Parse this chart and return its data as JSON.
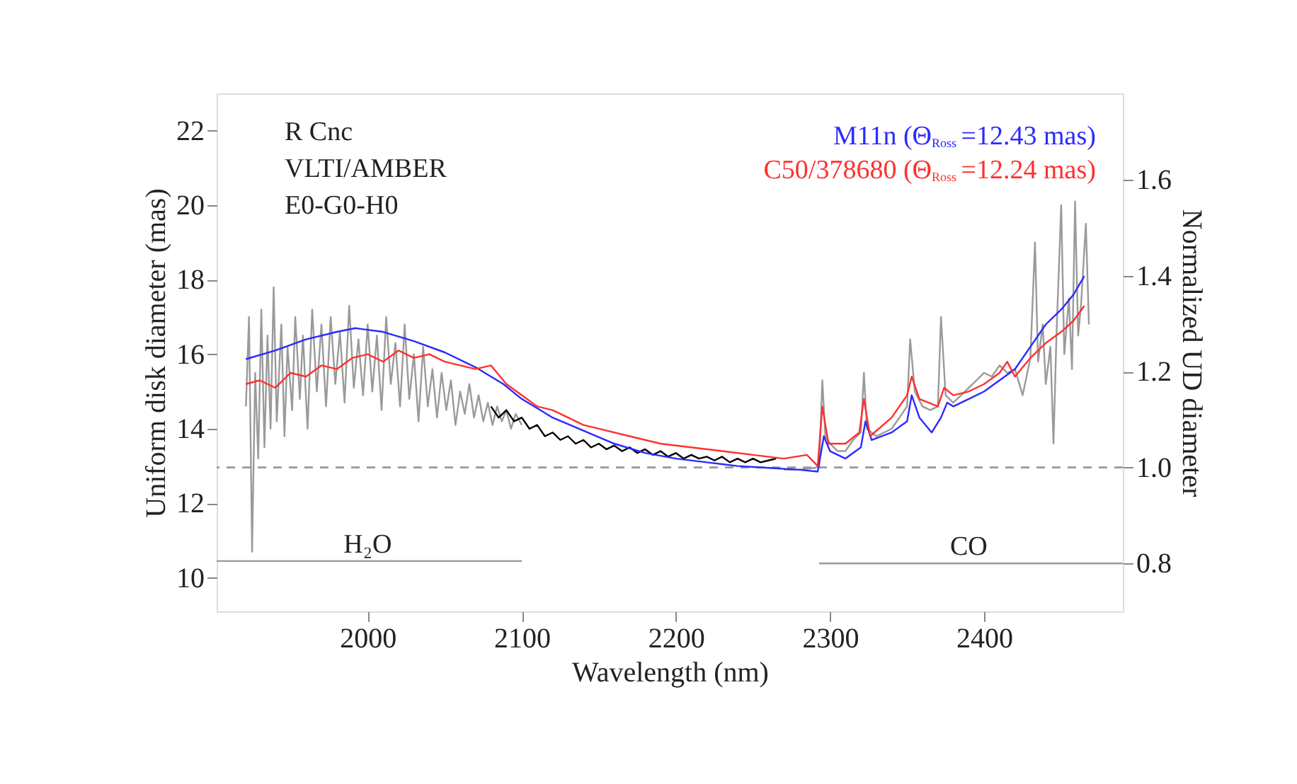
{
  "chart_data": {
    "type": "line",
    "xlabel": "Wavelength (nm)",
    "ylabel": "Uniform disk diameter (mas)",
    "y2label": "Normalized UD diameter",
    "xlim": [
      1902,
      2490
    ],
    "xticks": [
      2000,
      2100,
      2200,
      2300,
      2400
    ],
    "ylim": [
      9.1,
      23.0
    ],
    "yticks": [
      10,
      12,
      14,
      16,
      18,
      20,
      22
    ],
    "y2lim": [
      0.7,
      1.78
    ],
    "y2ticks": [
      {
        "value": 0.8,
        "label": "0.8"
      },
      {
        "value": 1.0,
        "label": "1.0"
      },
      {
        "value": 1.2,
        "label": "1.2"
      },
      {
        "value": 1.4,
        "label": "1.4"
      },
      {
        "value": 1.6,
        "label": "1.6"
      }
    ],
    "grid": false,
    "legend": "top right",
    "marker": "none",
    "line_style": "solid",
    "series": [
      {
        "color": "#9a9a9a",
        "x": [
          1921,
          1923,
          1925,
          1927,
          1929,
          1931,
          1933,
          1935,
          1937,
          1939,
          1941,
          1944,
          1946,
          1948,
          1951,
          1953,
          1956,
          1958,
          1961,
          1964,
          1967,
          1970,
          1973,
          1976,
          1979,
          1982,
          1985,
          1988,
          1991,
          1994,
          1997,
          2000,
          2003,
          2006,
          2009,
          2012,
          2015,
          2018,
          2021,
          2024,
          2027,
          2030,
          2033,
          2036,
          2039,
          2042,
          2045,
          2048,
          2051,
          2054,
          2057,
          2060,
          2063,
          2066,
          2069,
          2072,
          2075,
          2078,
          2081,
          2084,
          2087,
          2090,
          2093,
          2096,
          2100,
          2180,
          2270,
          2280,
          2290,
          2293,
          2295,
          2297,
          2300,
          2305,
          2310,
          2315,
          2320,
          2322,
          2324,
          2330,
          2340,
          2350,
          2352,
          2355,
          2360,
          2365,
          2370,
          2372,
          2375,
          2380,
          2385,
          2390,
          2395,
          2400,
          2405,
          2410,
          2415,
          2420,
          2425,
          2430,
          2433,
          2435,
          2438,
          2440,
          2443,
          2445,
          2447,
          2450,
          2452,
          2455,
          2457,
          2459,
          2461,
          2463,
          2466,
          2468
        ],
        "values": [
          14.6,
          17.0,
          10.7,
          15.5,
          13.2,
          17.2,
          13.5,
          16.5,
          14.0,
          17.8,
          14.2,
          16.8,
          13.8,
          16.2,
          14.5,
          17.0,
          14.8,
          16.5,
          14.0,
          17.2,
          15.0,
          16.8,
          14.6,
          17.0,
          15.2,
          16.6,
          14.7,
          17.3,
          15.1,
          16.4,
          14.9,
          16.8,
          15.0,
          16.5,
          14.5,
          17.0,
          15.2,
          16.3,
          14.6,
          16.8,
          14.8,
          16.0,
          14.2,
          16.2,
          14.6,
          15.6,
          14.3,
          15.5,
          14.5,
          15.3,
          14.1,
          15.0,
          14.4,
          15.2,
          14.3,
          14.9,
          14.2,
          14.7,
          14.1,
          14.6,
          14.2,
          14.5,
          14.0,
          14.4,
          14.1,
          null,
          12.9,
          12.9,
          12.95,
          13.0,
          15.3,
          13.8,
          13.6,
          13.4,
          13.4,
          13.7,
          13.9,
          15.5,
          14.0,
          13.8,
          14.0,
          14.6,
          16.4,
          15.0,
          14.6,
          14.5,
          14.6,
          17.0,
          14.9,
          14.7,
          14.9,
          15.1,
          15.3,
          15.5,
          15.4,
          15.7,
          15.5,
          15.6,
          14.9,
          15.9,
          19.0,
          15.8,
          16.8,
          15.2,
          16.2,
          13.6,
          16.6,
          20.0,
          16.0,
          17.5,
          15.6,
          20.1,
          16.5,
          17.4,
          19.5,
          16.8
        ]
      },
      {
        "color": "#000000",
        "x": [
          2080,
          2085,
          2090,
          2095,
          2100,
          2105,
          2110,
          2115,
          2120,
          2125,
          2130,
          2135,
          2140,
          2145,
          2150,
          2155,
          2160,
          2165,
          2170,
          2175,
          2180,
          2185,
          2190,
          2195,
          2200,
          2205,
          2210,
          2215,
          2220,
          2225,
          2230,
          2235,
          2240,
          2245,
          2250,
          2255,
          2260,
          2265
        ],
        "values": [
          14.6,
          14.3,
          14.5,
          14.2,
          14.3,
          14.0,
          14.1,
          13.8,
          13.9,
          13.7,
          13.8,
          13.6,
          13.7,
          13.5,
          13.6,
          13.45,
          13.55,
          13.4,
          13.5,
          13.35,
          13.45,
          13.3,
          13.4,
          13.25,
          13.35,
          13.2,
          13.3,
          13.2,
          13.25,
          13.15,
          13.25,
          13.1,
          13.2,
          13.1,
          13.2,
          13.1,
          13.15,
          13.2
        ]
      },
      {
        "name": "M11n (Θ$_{Ross}$=12.43 mas)",
        "color": "#2a2aff",
        "x": [
          1921,
          1940,
          1960,
          1980,
          1992,
          2010,
          2030,
          2050,
          2070,
          2088,
          2100,
          2120,
          2140,
          2160,
          2180,
          2200,
          2220,
          2240,
          2260,
          2280,
          2292,
          2296,
          2300,
          2310,
          2320,
          2323,
          2327,
          2340,
          2350,
          2353,
          2358,
          2366,
          2372,
          2376,
          2380,
          2390,
          2400,
          2410,
          2420,
          2430,
          2440,
          2450,
          2458,
          2465
        ],
        "values": [
          15.87,
          16.1,
          16.4,
          16.6,
          16.7,
          16.6,
          16.35,
          16.05,
          15.65,
          15.2,
          14.8,
          14.3,
          13.95,
          13.6,
          13.35,
          13.2,
          13.1,
          13.0,
          12.95,
          12.9,
          12.85,
          13.8,
          13.4,
          13.2,
          13.5,
          14.2,
          13.7,
          13.9,
          14.2,
          14.9,
          14.3,
          13.9,
          14.3,
          14.7,
          14.6,
          14.8,
          15.0,
          15.3,
          15.6,
          16.2,
          16.8,
          17.2,
          17.6,
          18.1
        ]
      },
      {
        "name": "C50/378680 (Θ$_{Ross}$=12.24 mas)",
        "color": "#ff3030",
        "x": [
          1921,
          1930,
          1940,
          1950,
          1960,
          1970,
          1980,
          1990,
          2000,
          2010,
          2020,
          2030,
          2040,
          2050,
          2060,
          2070,
          2080,
          2090,
          2100,
          2110,
          2120,
          2130,
          2140,
          2150,
          2170,
          2190,
          2210,
          2230,
          2250,
          2270,
          2285,
          2292,
          2295,
          2299,
          2310,
          2319,
          2322,
          2326,
          2340,
          2350,
          2353,
          2358,
          2370,
          2374,
          2380,
          2390,
          2400,
          2410,
          2415,
          2420,
          2430,
          2440,
          2450,
          2458,
          2465
        ],
        "values": [
          15.2,
          15.3,
          15.1,
          15.5,
          15.4,
          15.7,
          15.6,
          15.9,
          16.0,
          15.8,
          16.1,
          15.9,
          16.0,
          15.8,
          15.7,
          15.6,
          15.7,
          15.2,
          14.9,
          14.6,
          14.5,
          14.3,
          14.1,
          14.0,
          13.8,
          13.6,
          13.5,
          13.4,
          13.3,
          13.2,
          13.3,
          13.0,
          14.6,
          13.6,
          13.6,
          13.9,
          14.8,
          13.8,
          14.3,
          14.9,
          15.4,
          14.8,
          14.6,
          15.1,
          14.9,
          15.0,
          15.2,
          15.5,
          15.8,
          15.4,
          15.9,
          16.3,
          16.6,
          16.9,
          17.3
        ]
      },
      {
        "type": "line",
        "color": "#999999",
        "x": [
          1902,
          2100
        ],
        "values": [
          10.45,
          10.45
        ]
      },
      {
        "type": "line",
        "axis": "y2",
        "color": "#999999",
        "x": [
          2293,
          2490
        ],
        "values": [
          0.8,
          0.8
        ]
      }
    ],
    "ref_lines": [
      {
        "axis": "y2",
        "value": 1.0,
        "color": "#999999",
        "line_style": "dashed"
      }
    ],
    "annotations": [
      "R Cnc",
      "VLTI/AMBER",
      "E0-G0-H0",
      {
        "text": "H₂O",
        "x": 2000,
        "y": 10.45
      },
      {
        "text": "CO",
        "x": 2390,
        "y": 10.4
      }
    ]
  }
}
